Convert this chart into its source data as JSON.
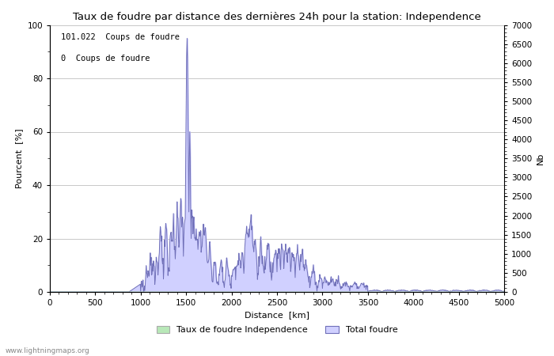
{
  "title": "Taux de foudre par distance des dernières 24h pour la station: Independence",
  "xlabel": "Distance  [km]",
  "ylabel_left": "Pourcent  [%]",
  "ylabel_right": "Nb",
  "annotation_line1": "101.022  Coups de foudre",
  "annotation_line2": "0  Coups de foudre",
  "xlim": [
    0,
    5000
  ],
  "ylim_left": [
    0,
    100
  ],
  "ylim_right": [
    0,
    7000
  ],
  "xticks": [
    0,
    500,
    1000,
    1500,
    2000,
    2500,
    3000,
    3500,
    4000,
    4500,
    5000
  ],
  "yticks_left": [
    0,
    20,
    40,
    60,
    80,
    100
  ],
  "yticks_right": [
    0,
    500,
    1000,
    1500,
    2000,
    2500,
    3000,
    3500,
    4000,
    4500,
    5000,
    5500,
    6000,
    6500,
    7000
  ],
  "legend_label_green": "Taux de foudre Independence",
  "legend_label_blue": "Total foudre",
  "fill_color_blue": "#d0d0ff",
  "line_color_blue": "#7070b8",
  "fill_color_green": "#b8e8b8",
  "watermark": "www.lightningmaps.org",
  "background_color": "#ffffff",
  "grid_color": "#c8c8c8"
}
